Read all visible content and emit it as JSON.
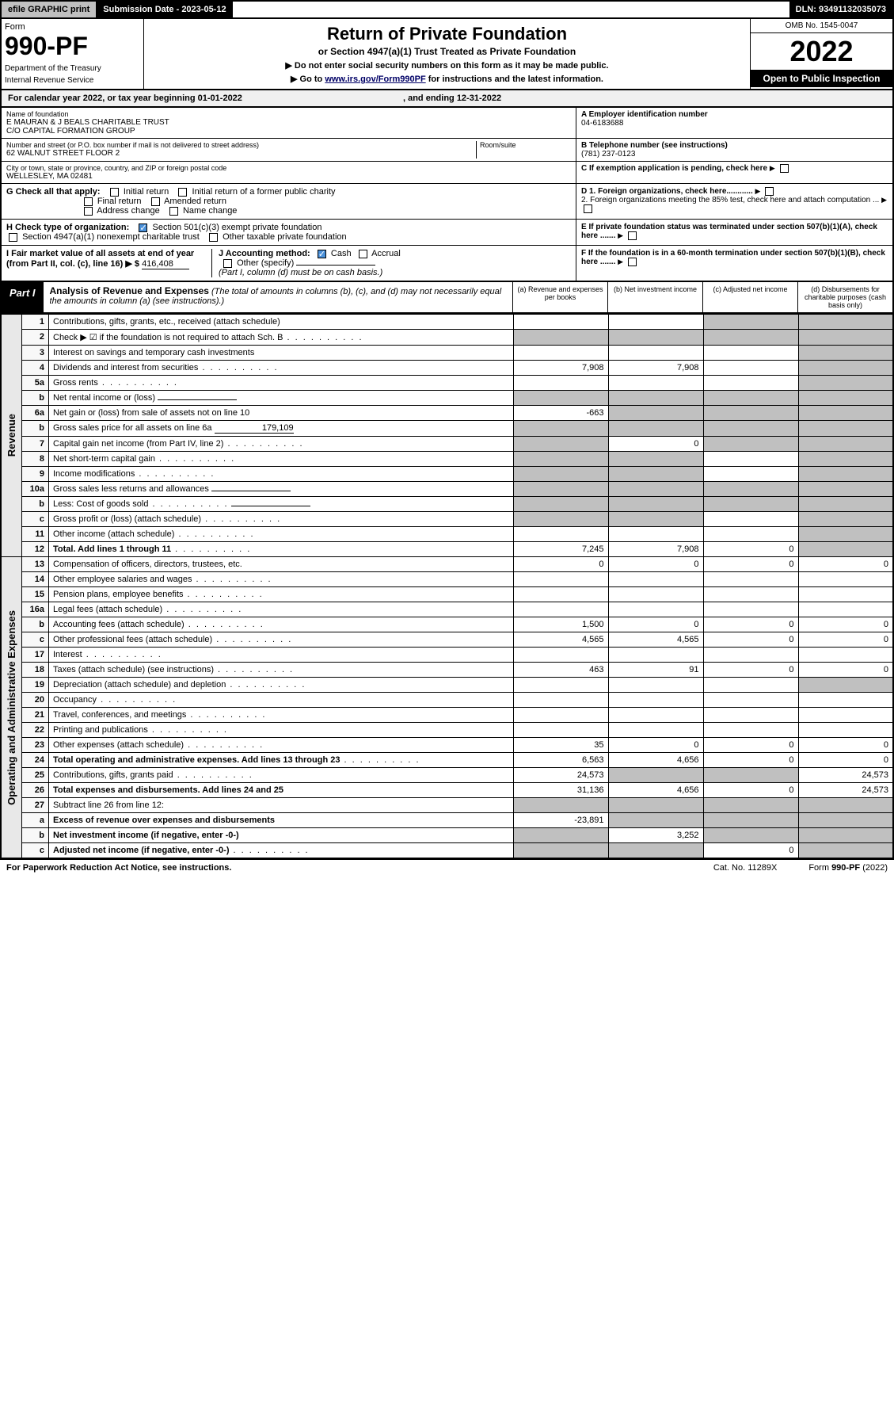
{
  "top": {
    "efile": "efile GRAPHIC print",
    "submission": "Submission Date - 2023-05-12",
    "dln": "DLN: 93491132035073"
  },
  "header": {
    "form_label": "Form",
    "form_num": "990-PF",
    "dept": "Department of the Treasury",
    "irs": "Internal Revenue Service",
    "title": "Return of Private Foundation",
    "subtitle": "or Section 4947(a)(1) Trust Treated as Private Foundation",
    "note1": "▶ Do not enter social security numbers on this form as it may be made public.",
    "note2_pre": "▶ Go to ",
    "note2_link": "www.irs.gov/Form990PF",
    "note2_post": " for instructions and the latest information.",
    "omb": "OMB No. 1545-0047",
    "year": "2022",
    "open": "Open to Public Inspection"
  },
  "cal": {
    "text": "For calendar year 2022, or tax year beginning 01-01-2022",
    "end": ", and ending 12-31-2022"
  },
  "info": {
    "name_lbl": "Name of foundation",
    "name1": "E MAURAN & J BEALS CHARITABLE TRUST",
    "name2": "C/O CAPITAL FORMATION GROUP",
    "addr_lbl": "Number and street (or P.O. box number if mail is not delivered to street address)",
    "addr": "62 WALNUT STREET FLOOR 2",
    "room_lbl": "Room/suite",
    "city_lbl": "City or town, state or province, country, and ZIP or foreign postal code",
    "city": "WELLESLEY, MA  02481",
    "a_lbl": "A Employer identification number",
    "a_val": "04-6183688",
    "b_lbl": "B Telephone number (see instructions)",
    "b_val": "(781) 237-0123",
    "c_lbl": "C If exemption application is pending, check here"
  },
  "checks": {
    "g_lbl": "G Check all that apply:",
    "g1": "Initial return",
    "g2": "Initial return of a former public charity",
    "g3": "Final return",
    "g4": "Amended return",
    "g5": "Address change",
    "g6": "Name change",
    "h_lbl": "H Check type of organization:",
    "h1": "Section 501(c)(3) exempt private foundation",
    "h2": "Section 4947(a)(1) nonexempt charitable trust",
    "h3": "Other taxable private foundation",
    "i_lbl": "I Fair market value of all assets at end of year (from Part II, col. (c), line 16) ▶ $",
    "i_val": "416,408",
    "j_lbl": "J Accounting method:",
    "j1": "Cash",
    "j2": "Accrual",
    "j3": "Other (specify)",
    "j_note": "(Part I, column (d) must be on cash basis.)",
    "d1": "D 1. Foreign organizations, check here............",
    "d2": "2. Foreign organizations meeting the 85% test, check here and attach computation ...",
    "e": "E  If private foundation status was terminated under section 507(b)(1)(A), check here .......",
    "f": "F  If the foundation is in a 60-month termination under section 507(b)(1)(B), check here .......",
    "arrow": "▶"
  },
  "part1": {
    "lbl": "Part I",
    "title": "Analysis of Revenue and Expenses",
    "title_note": " (The total of amounts in columns (b), (c), and (d) may not necessarily equal the amounts in column (a) (see instructions).)",
    "col_a": "(a)  Revenue and expenses per books",
    "col_b": "(b)  Net investment income",
    "col_c": "(c)  Adjusted net income",
    "col_d": "(d)  Disbursements for charitable purposes (cash basis only)"
  },
  "rotations": {
    "rev": "Revenue",
    "exp": "Operating and Administrative Expenses"
  },
  "rows": [
    {
      "n": "1",
      "d": "Contributions, gifts, grants, etc., received (attach schedule)",
      "a": "",
      "b": "",
      "c": "g",
      "dd": "g"
    },
    {
      "n": "2",
      "d": "Check ▶ ☑ if the foundation is not required to attach Sch. B",
      "dots": true,
      "a": "g",
      "b": "g",
      "c": "g",
      "dd": "g"
    },
    {
      "n": "3",
      "d": "Interest on savings and temporary cash investments",
      "a": "",
      "b": "",
      "c": "",
      "dd": "g"
    },
    {
      "n": "4",
      "d": "Dividends and interest from securities",
      "dots": true,
      "a": "7,908",
      "b": "7,908",
      "c": "",
      "dd": "g"
    },
    {
      "n": "5a",
      "d": "Gross rents",
      "dots": true,
      "a": "",
      "b": "",
      "c": "",
      "dd": "g"
    },
    {
      "n": "b",
      "d": "Net rental income or (loss)",
      "inline": true,
      "a": "g",
      "b": "g",
      "c": "g",
      "dd": "g"
    },
    {
      "n": "6a",
      "d": "Net gain or (loss) from sale of assets not on line 10",
      "a": "-663",
      "b": "g",
      "c": "g",
      "dd": "g"
    },
    {
      "n": "b",
      "d": "Gross sales price for all assets on line 6a",
      "inline": true,
      "inline_val": "179,109",
      "a": "g",
      "b": "g",
      "c": "g",
      "dd": "g"
    },
    {
      "n": "7",
      "d": "Capital gain net income (from Part IV, line 2)",
      "dots": true,
      "a": "g",
      "b": "0",
      "c": "g",
      "dd": "g"
    },
    {
      "n": "8",
      "d": "Net short-term capital gain",
      "dots": true,
      "a": "g",
      "b": "g",
      "c": "",
      "dd": "g"
    },
    {
      "n": "9",
      "d": "Income modifications",
      "dots": true,
      "a": "g",
      "b": "g",
      "c": "",
      "dd": "g"
    },
    {
      "n": "10a",
      "d": "Gross sales less returns and allowances",
      "inline": true,
      "a": "g",
      "b": "g",
      "c": "g",
      "dd": "g"
    },
    {
      "n": "b",
      "d": "Less: Cost of goods sold",
      "dots": true,
      "inline": true,
      "a": "g",
      "b": "g",
      "c": "g",
      "dd": "g"
    },
    {
      "n": "c",
      "d": "Gross profit or (loss) (attach schedule)",
      "dots": true,
      "a": "g",
      "b": "g",
      "c": "",
      "dd": "g"
    },
    {
      "n": "11",
      "d": "Other income (attach schedule)",
      "dots": true,
      "a": "",
      "b": "",
      "c": "",
      "dd": "g"
    },
    {
      "n": "12",
      "d": "Total. Add lines 1 through 11",
      "dots": true,
      "bold": true,
      "a": "7,245",
      "b": "7,908",
      "c": "0",
      "dd": "g"
    },
    {
      "n": "13",
      "d": "Compensation of officers, directors, trustees, etc.",
      "a": "0",
      "b": "0",
      "c": "0",
      "dd": "0"
    },
    {
      "n": "14",
      "d": "Other employee salaries and wages",
      "dots": true,
      "a": "",
      "b": "",
      "c": "",
      "dd": ""
    },
    {
      "n": "15",
      "d": "Pension plans, employee benefits",
      "dots": true,
      "a": "",
      "b": "",
      "c": "",
      "dd": ""
    },
    {
      "n": "16a",
      "d": "Legal fees (attach schedule)",
      "dots": true,
      "a": "",
      "b": "",
      "c": "",
      "dd": ""
    },
    {
      "n": "b",
      "d": "Accounting fees (attach schedule)",
      "dots": true,
      "a": "1,500",
      "b": "0",
      "c": "0",
      "dd": "0"
    },
    {
      "n": "c",
      "d": "Other professional fees (attach schedule)",
      "dots": true,
      "a": "4,565",
      "b": "4,565",
      "c": "0",
      "dd": "0"
    },
    {
      "n": "17",
      "d": "Interest",
      "dots": true,
      "a": "",
      "b": "",
      "c": "",
      "dd": ""
    },
    {
      "n": "18",
      "d": "Taxes (attach schedule) (see instructions)",
      "dots": true,
      "a": "463",
      "b": "91",
      "c": "0",
      "dd": "0"
    },
    {
      "n": "19",
      "d": "Depreciation (attach schedule) and depletion",
      "dots": true,
      "a": "",
      "b": "",
      "c": "",
      "dd": "g"
    },
    {
      "n": "20",
      "d": "Occupancy",
      "dots": true,
      "a": "",
      "b": "",
      "c": "",
      "dd": ""
    },
    {
      "n": "21",
      "d": "Travel, conferences, and meetings",
      "dots": true,
      "a": "",
      "b": "",
      "c": "",
      "dd": ""
    },
    {
      "n": "22",
      "d": "Printing and publications",
      "dots": true,
      "a": "",
      "b": "",
      "c": "",
      "dd": ""
    },
    {
      "n": "23",
      "d": "Other expenses (attach schedule)",
      "dots": true,
      "a": "35",
      "b": "0",
      "c": "0",
      "dd": "0"
    },
    {
      "n": "24",
      "d": "Total operating and administrative expenses. Add lines 13 through 23",
      "dots": true,
      "bold": true,
      "a": "6,563",
      "b": "4,656",
      "c": "0",
      "dd": "0"
    },
    {
      "n": "25",
      "d": "Contributions, gifts, grants paid",
      "dots": true,
      "a": "24,573",
      "b": "g",
      "c": "g",
      "dd": "24,573"
    },
    {
      "n": "26",
      "d": "Total expenses and disbursements. Add lines 24 and 25",
      "bold": true,
      "a": "31,136",
      "b": "4,656",
      "c": "0",
      "dd": "24,573"
    },
    {
      "n": "27",
      "d": "Subtract line 26 from line 12:",
      "a": "g",
      "b": "g",
      "c": "g",
      "dd": "g"
    },
    {
      "n": "a",
      "d": "Excess of revenue over expenses and disbursements",
      "bold": true,
      "a": "-23,891",
      "b": "g",
      "c": "g",
      "dd": "g"
    },
    {
      "n": "b",
      "d": "Net investment income (if negative, enter -0-)",
      "bold": true,
      "a": "g",
      "b": "3,252",
      "c": "g",
      "dd": "g"
    },
    {
      "n": "c",
      "d": "Adjusted net income (if negative, enter -0-)",
      "dots": true,
      "bold": true,
      "a": "g",
      "b": "g",
      "c": "0",
      "dd": "g"
    }
  ],
  "footer": {
    "l": "For Paperwork Reduction Act Notice, see instructions.",
    "m": "Cat. No. 11289X",
    "r": "Form 990-PF (2022)"
  }
}
